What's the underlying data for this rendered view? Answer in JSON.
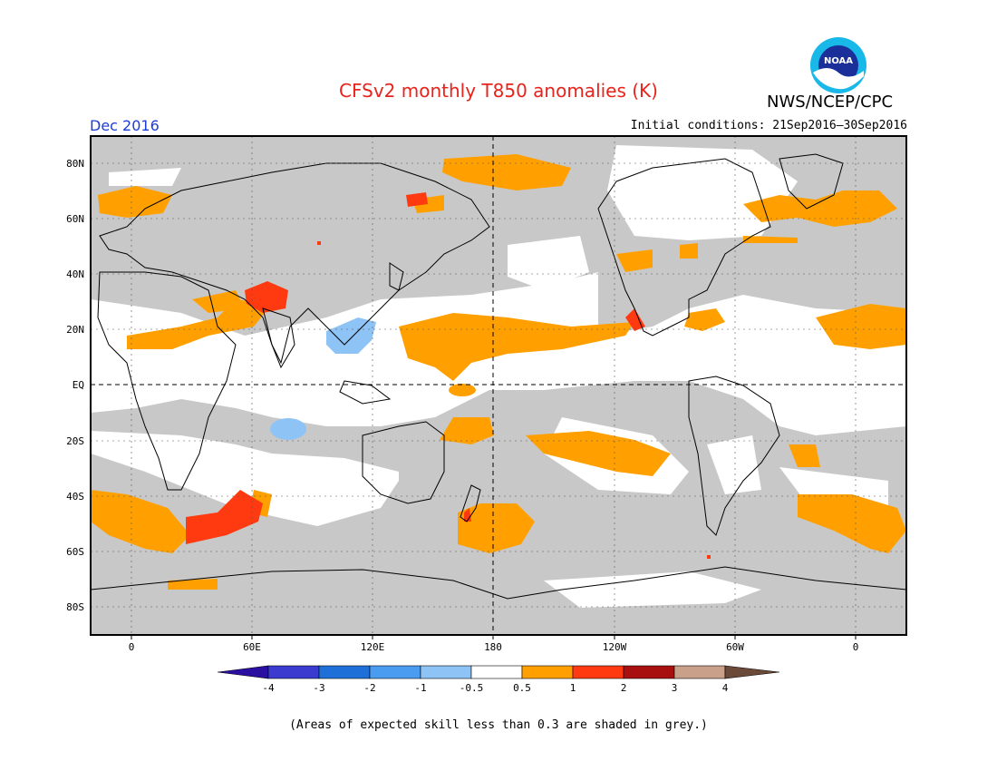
{
  "header": {
    "title": "CFSv2 monthly T850 anomalies (K)",
    "org": "NWS/NCEP/CPC",
    "logo_text": "NOAA",
    "month": "Dec 2016",
    "initial_conditions": "Initial conditions: 21Sep2016–30Sep2016"
  },
  "map": {
    "projection": "equirectangular",
    "lon_range": [
      -20,
      380
    ],
    "lat_range": [
      -90,
      90
    ],
    "x_ticks": [
      "0",
      "60E",
      "120E",
      "180",
      "120W",
      "60W",
      "0"
    ],
    "y_ticks": [
      "80N",
      "60N",
      "40N",
      "20N",
      "EQ",
      "20S",
      "40S",
      "60S",
      "80S"
    ],
    "background_color": "#c8c8c8",
    "land_outline_color": "#000000"
  },
  "legend": {
    "labels": [
      "-4",
      "-3",
      "-2",
      "-1",
      "-0.5",
      "0.5",
      "1",
      "2",
      "3",
      "4"
    ],
    "colors": [
      "#2b0fa0",
      "#3b3bd0",
      "#1f6fd9",
      "#4a9cf0",
      "#8ec3f5",
      "#ffffff",
      "#ffa000",
      "#ff3a10",
      "#a81010",
      "#c9a08a",
      "#6b4a3a"
    ],
    "units": "K"
  },
  "footnote": "(Areas of expected skill less than 0.3 are shaded in grey.)"
}
